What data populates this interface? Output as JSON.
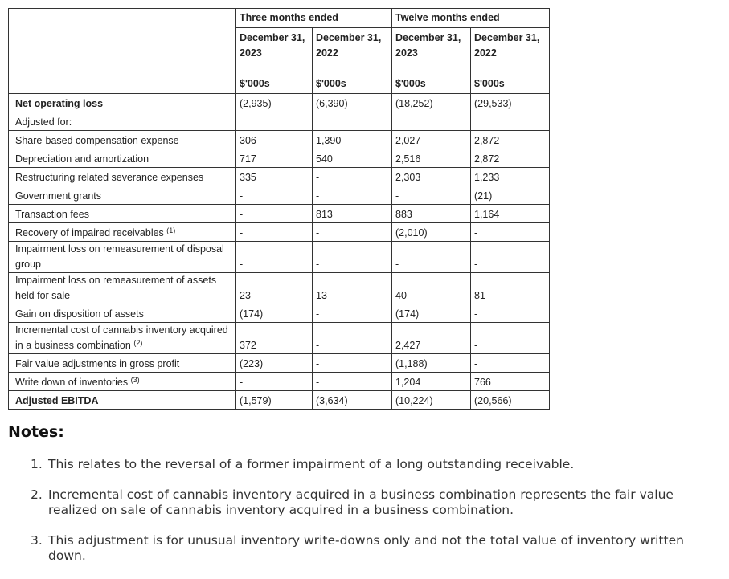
{
  "table": {
    "groups": [
      "Three months ended",
      "Twelve months ended"
    ],
    "columns": [
      {
        "date": "December 31,",
        "year": "2023",
        "unit": "$'000s"
      },
      {
        "date": "December 31,",
        "year": "2022",
        "unit": "$'000s"
      },
      {
        "date": "December 31,",
        "year": "2023",
        "unit": "$'000s"
      },
      {
        "date": "December 31,",
        "year": "2022",
        "unit": "$'000s"
      }
    ],
    "rows": [
      {
        "label": "Net operating loss",
        "bold": true,
        "values": [
          "(2,935)",
          "(6,390)",
          "(18,252)",
          "(29,533)"
        ]
      },
      {
        "label": "Adjusted for:"
      },
      {
        "label": "Share-based compensation expense",
        "values": [
          "306",
          "1,390",
          "2,027",
          "2,872"
        ]
      },
      {
        "label": "Depreciation and amortization",
        "values": [
          "717",
          "540",
          "2,516",
          "2,872"
        ]
      },
      {
        "label": "Restructuring related severance expenses",
        "values": [
          "335",
          "-",
          "2,303",
          "1,233"
        ]
      },
      {
        "label": "Government grants",
        "values": [
          "-",
          "-",
          "-",
          "(21)"
        ]
      },
      {
        "label": "Transaction fees",
        "values": [
          "-",
          "813",
          "883",
          "1,164"
        ]
      },
      {
        "label": "Recovery of impaired receivables",
        "note": "(1)",
        "values": [
          "-",
          "-",
          "(2,010)",
          "-"
        ]
      },
      {
        "label": "Impairment loss on remeasurement of disposal group",
        "values": [
          "-",
          "-",
          "-",
          "-"
        ]
      },
      {
        "label": "Impairment loss on remeasurement of assets held for sale",
        "values": [
          "23",
          "13",
          "40",
          "81"
        ]
      },
      {
        "label": "Gain on disposition of assets",
        "values": [
          "(174)",
          "-",
          "(174)",
          "-"
        ]
      },
      {
        "label": "Incremental cost of cannabis inventory acquired in a business combination",
        "note": "(2)",
        "values": [
          "372",
          "-",
          "2,427",
          "-"
        ]
      },
      {
        "label": "Fair value adjustments in gross profit",
        "values": [
          "(223)",
          "-",
          "(1,188)",
          "-"
        ]
      },
      {
        "label": "Write down of inventories",
        "note": "(3)",
        "values": [
          "-",
          "-",
          "1,204",
          "766"
        ]
      },
      {
        "label": "Adjusted EBITDA",
        "bold": true,
        "values": [
          "(1,579)",
          "(3,634)",
          "(10,224)",
          "(20,566)"
        ]
      }
    ]
  },
  "notes": {
    "title": "Notes:",
    "items": [
      {
        "marker": "1.",
        "text": "This relates to the reversal of a former impairment of a long outstanding receivable."
      },
      {
        "marker": "2.",
        "text": "Incremental cost of cannabis inventory acquired in a business combination represents the fair value realized on sale of cannabis inventory acquired in a business combination."
      },
      {
        "marker": "3.",
        "text": "This adjustment is for unusual inventory write-downs only and not the total value of inventory written down."
      }
    ]
  }
}
